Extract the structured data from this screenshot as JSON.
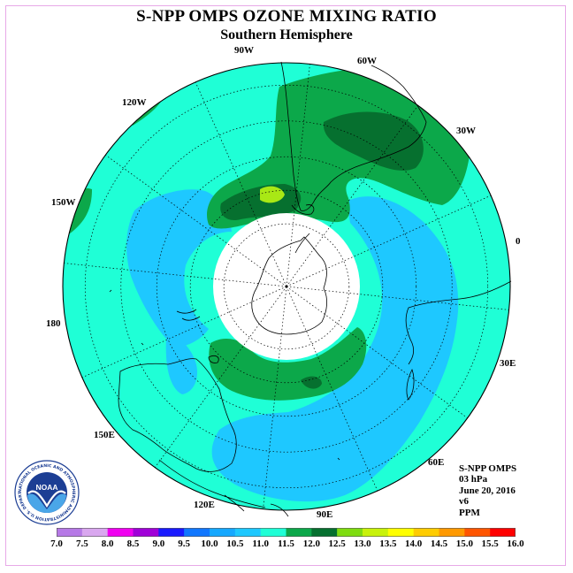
{
  "title": "S-NPP OMPS OZONE MIXING RATIO",
  "subtitle": "Southern Hemisphere",
  "info": {
    "instrument": "S-NPP OMPS",
    "pressure": "03 hPa",
    "date": "June 20, 2016",
    "version": "v6",
    "units": "PPM"
  },
  "longitude_labels": [
    "90W",
    "60W",
    "120W",
    "30W",
    "150W",
    "0",
    "180",
    "30E",
    "150E",
    "60E",
    "120E",
    "90E"
  ],
  "logo": {
    "text": "NOAA",
    "ring_text": "NATIONAL OCEANIC AND ATMOSPHERIC ADMINISTRATION  U.S. DEPARTMENT OF COMMERCE"
  },
  "colorbar": {
    "values": [
      "7.0",
      "7.5",
      "8.0",
      "8.5",
      "9.0",
      "9.5",
      "10.0",
      "10.5",
      "11.0",
      "11.5",
      "12.0",
      "12.5",
      "13.0",
      "13.5",
      "14.0",
      "14.5",
      "15.0",
      "15.5",
      "16.0"
    ],
    "colors": [
      "#b679e6",
      "#d9a7ef",
      "#f000f0",
      "#a000d8",
      "#1a1aff",
      "#1177ff",
      "#16a8ff",
      "#1ec8ff",
      "#1fffd6",
      "#0ca84a",
      "#06702f",
      "#7fdc10",
      "#c8f20a",
      "#ffff00",
      "#ffcc00",
      "#ff9900",
      "#ff5500",
      "#ff0000",
      "#80522e"
    ]
  },
  "colors": {
    "ocean_bg": "#1fffd6",
    "mid_green": "#0ca84a",
    "dark_green": "#06702f",
    "light_blue": "#1ec8ff",
    "yellow_green": "#a9e815",
    "pole_cap": "#ffffff"
  }
}
